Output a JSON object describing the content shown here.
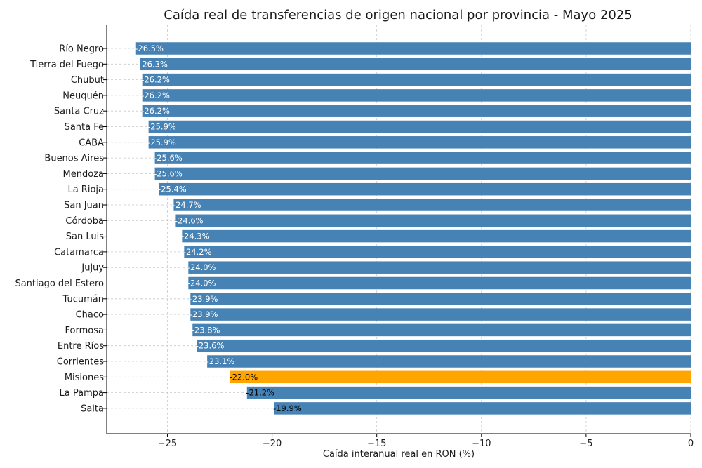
{
  "chart_data": {
    "type": "bar",
    "orientation": "horizontal",
    "title": "Caída real de transferencias de origen nacional por provincia - Mayo 2025",
    "xlabel": "Caída interanual real en RON (%)",
    "ylabel": "",
    "xlim": [
      -27.9,
      0
    ],
    "xticks": [
      -25,
      -20,
      -15,
      -10,
      -5,
      0
    ],
    "xtick_labels": [
      "−25",
      "−20",
      "−15",
      "−10",
      "−5",
      "0"
    ],
    "grid": true,
    "categories": [
      "Río Negro",
      "Tierra del Fuego",
      "Chubut",
      "Neuquén",
      "Santa Cruz",
      "Santa Fe",
      "CABA",
      "Buenos Aires",
      "Mendoza",
      "La Rioja",
      "San Juan",
      "Córdoba",
      "San Luis",
      "Catamarca",
      "Jujuy",
      "Santiago del Estero",
      "Tucumán",
      "Chaco",
      "Formosa",
      "Entre Ríos",
      "Corrientes",
      "Misiones",
      "La Pampa",
      "Salta"
    ],
    "values": [
      -26.5,
      -26.3,
      -26.2,
      -26.2,
      -26.2,
      -25.9,
      -25.9,
      -25.6,
      -25.6,
      -25.4,
      -24.7,
      -24.6,
      -24.3,
      -24.2,
      -24.0,
      -24.0,
      -23.9,
      -23.9,
      -23.8,
      -23.6,
      -23.1,
      -22.0,
      -21.2,
      -19.9
    ],
    "data_labels": [
      "-26.5%",
      "-26.3%",
      "-26.2%",
      "-26.2%",
      "-26.2%",
      "-25.9%",
      "-25.9%",
      "-25.6%",
      "-25.6%",
      "-25.4%",
      "-24.7%",
      "-24.6%",
      "-24.3%",
      "-24.2%",
      "-24.0%",
      "-24.0%",
      "-23.9%",
      "-23.9%",
      "-23.8%",
      "-23.6%",
      "-23.1%",
      "-22.0%",
      "-21.2%",
      "-19.9%"
    ],
    "highlight": "Misiones",
    "colors": {
      "bar": "#4682b4",
      "highlight": "#ffa500",
      "label_on_bar": "#ffffff",
      "label_off_bar": "#000000"
    }
  }
}
